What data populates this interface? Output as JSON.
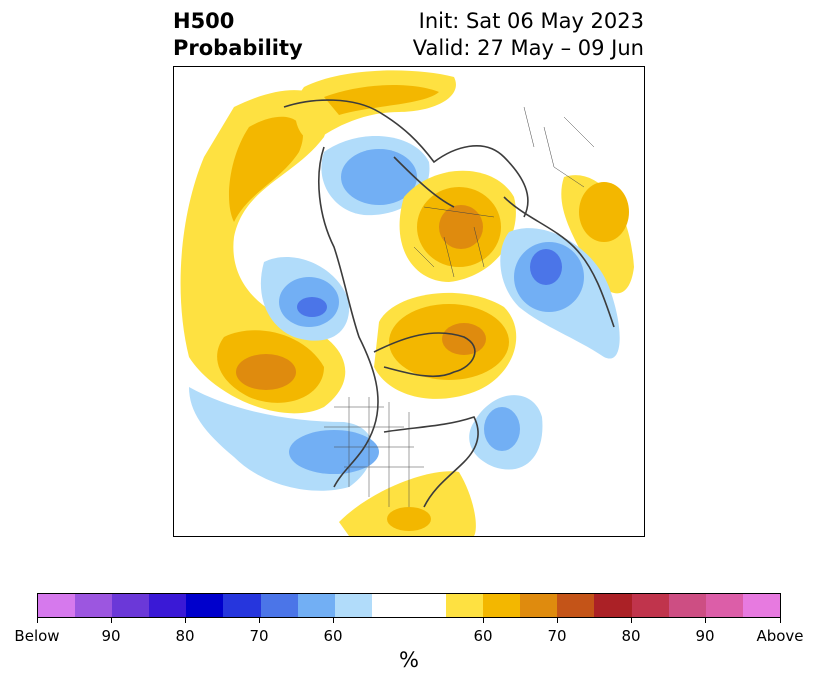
{
  "title": {
    "left_line1": "H500",
    "left_line2": "Probability",
    "init": "Init: Sat 06 May 2023",
    "valid": "Valid: 27 May – 09 Jun"
  },
  "map": {
    "projection": "north-polar-stereographic",
    "regions": [
      {
        "name": "below-normal-siberia",
        "color": "#b1dcfa"
      },
      {
        "name": "above-normal-europe",
        "color": "#f3b700"
      },
      {
        "name": "above-normal-canada",
        "color": "#f3b700"
      },
      {
        "name": "below-normal-western-us",
        "color": "#b1dcfa"
      },
      {
        "name": "above-normal-gulf",
        "color": "#fee141"
      }
    ]
  },
  "colorbar": {
    "colors": [
      "#d679ed",
      "#9c56e0",
      "#6b38d8",
      "#3a19d6",
      "#0000cc",
      "#2636dd",
      "#4b75e8",
      "#72aff4",
      "#b1dcfa",
      "#ffffff",
      "#ffffff",
      "#fee141",
      "#f3b700",
      "#df8b0e",
      "#c45418",
      "#ab2126",
      "#c0344c",
      "#cd4e83",
      "#dc5ea8",
      "#e77ae0"
    ],
    "labels": [
      "Below",
      "90",
      "80",
      "70",
      "60",
      "60",
      "70",
      "80",
      "90",
      "Above"
    ],
    "units": "%"
  }
}
